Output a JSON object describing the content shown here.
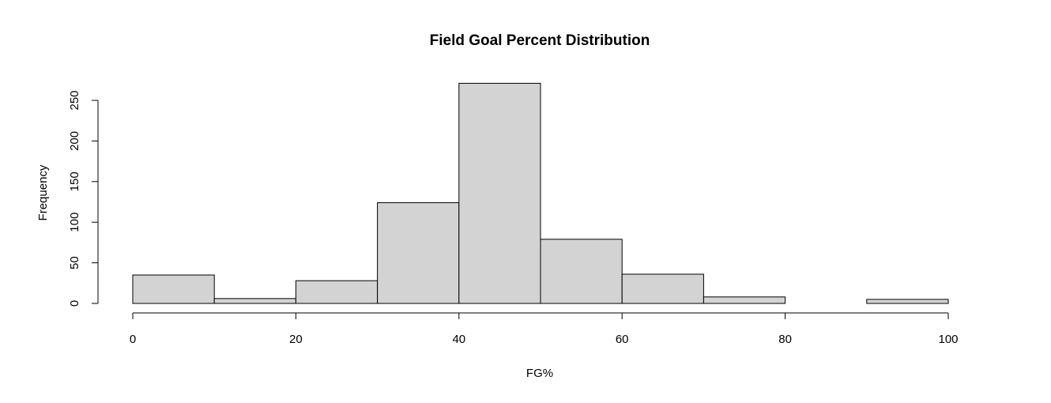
{
  "chart_data": {
    "type": "bar",
    "title": "Field Goal Percent Distribution",
    "xlabel": "FG%",
    "ylabel": "Frequency",
    "bin_edges": [
      0,
      10,
      20,
      30,
      40,
      50,
      60,
      70,
      80,
      90,
      100
    ],
    "values": [
      35,
      6,
      28,
      124,
      271,
      79,
      36,
      8,
      0,
      5
    ],
    "xlim": [
      0,
      100
    ],
    "ylim": [
      0,
      250
    ],
    "x_ticks": [
      0,
      20,
      40,
      60,
      80,
      100
    ],
    "y_ticks": [
      0,
      50,
      100,
      150,
      200,
      250
    ],
    "bar_color": "#d3d3d3",
    "border_color": "#000000",
    "grid": false
  }
}
